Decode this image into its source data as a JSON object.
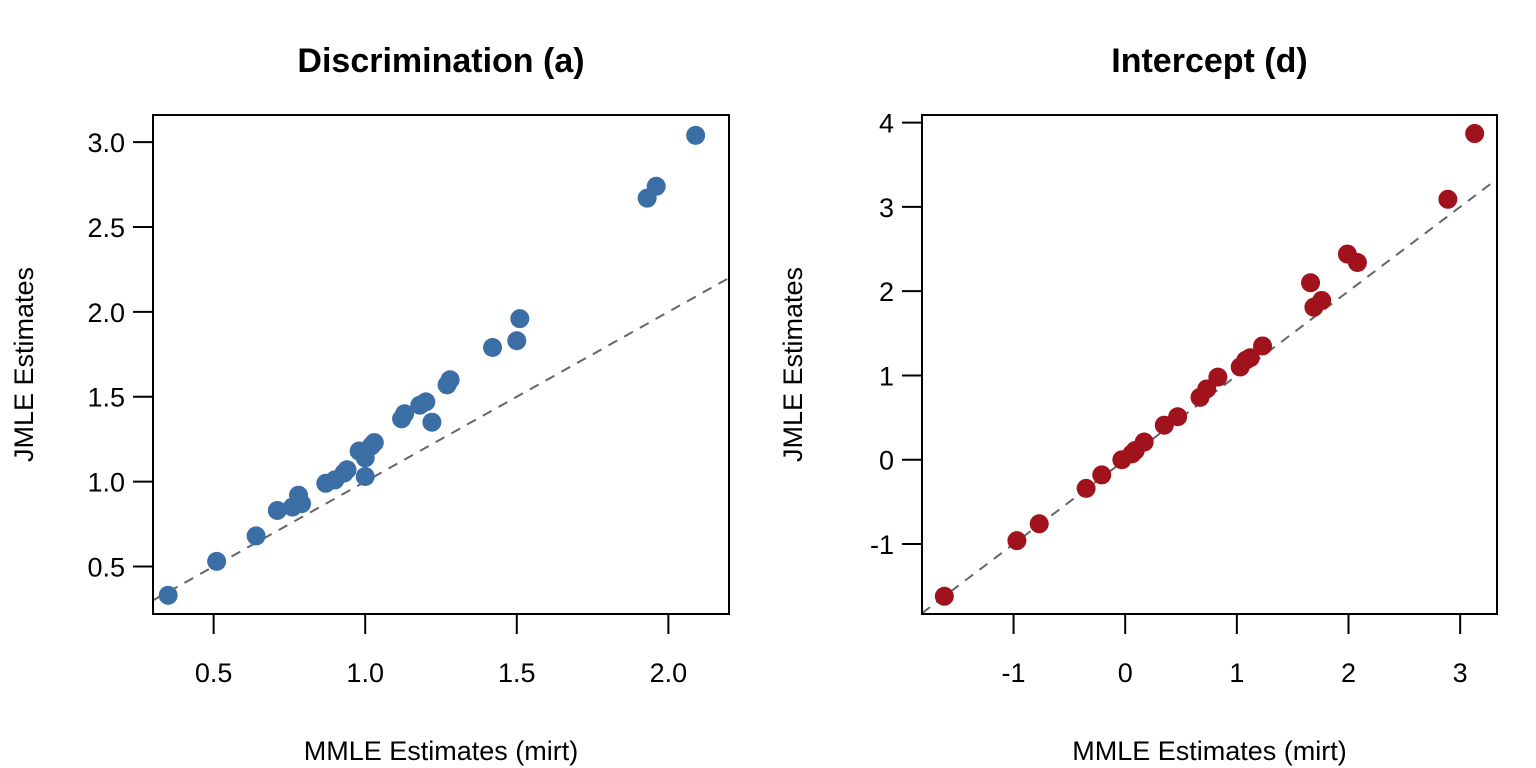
{
  "chart_data": [
    {
      "type": "scatter",
      "title": "Discrimination (a)",
      "xlabel": "MMLE Estimates (mirt)",
      "ylabel": "JMLE Estimates",
      "xlim": [
        0.3,
        2.2
      ],
      "ylim": [
        0.22,
        3.16
      ],
      "xticks": [
        0.5,
        1.0,
        1.5,
        2.0
      ],
      "xtick_labels": [
        "0.5",
        "1.0",
        "1.5",
        "2.0"
      ],
      "yticks": [
        0.5,
        1.0,
        1.5,
        2.0,
        2.5,
        3.0
      ],
      "ytick_labels": [
        "0.5",
        "1.0",
        "1.5",
        "2.0",
        "2.5",
        "3.0"
      ],
      "grid": false,
      "reference_line": {
        "type": "identity",
        "label": "y = x",
        "style": "dashed",
        "color": "#666666"
      },
      "point_color": "#3A6EA5",
      "x": [
        0.35,
        0.51,
        0.64,
        0.71,
        0.76,
        0.78,
        0.79,
        0.87,
        0.9,
        0.93,
        0.94,
        0.98,
        1.0,
        1.0,
        1.03,
        1.02,
        1.12,
        1.13,
        1.18,
        1.2,
        1.22,
        1.27,
        1.28,
        1.42,
        1.5,
        1.51,
        1.93,
        1.96,
        2.09
      ],
      "y": [
        0.33,
        0.53,
        0.68,
        0.83,
        0.85,
        0.92,
        0.87,
        0.99,
        1.01,
        1.05,
        1.07,
        1.18,
        1.14,
        1.03,
        1.23,
        1.21,
        1.37,
        1.4,
        1.45,
        1.47,
        1.35,
        1.57,
        1.6,
        1.79,
        1.83,
        1.96,
        2.67,
        2.74,
        3.04
      ]
    },
    {
      "type": "scatter",
      "title": "Intercept (d)",
      "xlabel": "MMLE Estimates (mirt)",
      "ylabel": "JMLE Estimates",
      "xlim": [
        -1.82,
        3.33
      ],
      "ylim": [
        -1.83,
        4.09
      ],
      "xticks": [
        -1,
        0,
        1,
        2,
        3
      ],
      "xtick_labels": [
        "-1",
        "0",
        "1",
        "2",
        "3"
      ],
      "yticks": [
        -1,
        0,
        1,
        2,
        3,
        4
      ],
      "ytick_labels": [
        "-1",
        "0",
        "1",
        "2",
        "3",
        "4"
      ],
      "grid": false,
      "reference_line": {
        "type": "identity",
        "label": "y = x",
        "style": "dashed",
        "color": "#666666"
      },
      "point_color": "#A0121C",
      "x": [
        -1.62,
        -0.97,
        -0.77,
        -0.35,
        -0.21,
        -0.03,
        0.06,
        0.09,
        0.17,
        0.35,
        0.47,
        0.67,
        0.73,
        0.83,
        1.03,
        1.08,
        1.12,
        1.23,
        1.69,
        1.76,
        1.66,
        1.99,
        2.08,
        2.89,
        3.13
      ],
      "y": [
        -1.62,
        -0.96,
        -0.76,
        -0.34,
        -0.18,
        0.0,
        0.07,
        0.11,
        0.21,
        0.41,
        0.51,
        0.74,
        0.84,
        0.98,
        1.1,
        1.18,
        1.21,
        1.35,
        1.81,
        1.89,
        2.1,
        2.44,
        2.34,
        3.09,
        3.87
      ]
    }
  ]
}
